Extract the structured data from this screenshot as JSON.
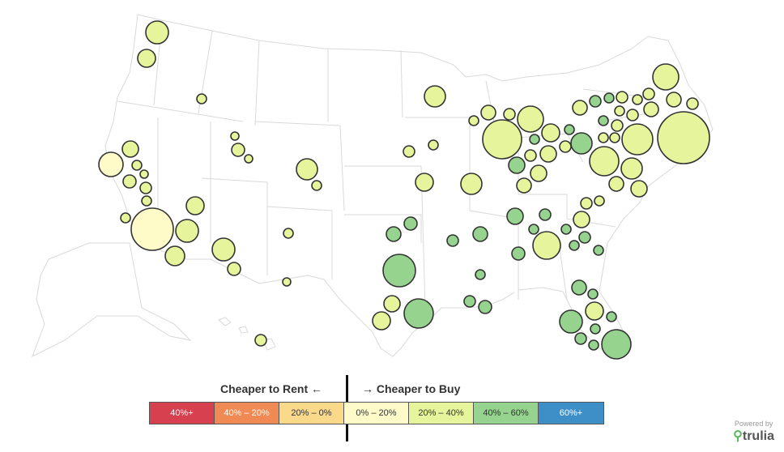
{
  "legend": {
    "rent_title": "Cheaper to Rent",
    "rent_arrow": "←",
    "buy_arrow": "→",
    "buy_title": "Cheaper to Buy",
    "bins": [
      {
        "label": "40%+",
        "color": "#d7404f",
        "text_color": "#ffffff"
      },
      {
        "label": "40% – 20%",
        "color": "#ef8a55",
        "text_color": "#ffffff"
      },
      {
        "label": "20% – 0%",
        "color": "#fbd98a",
        "text_color": "#333333"
      },
      {
        "label": "0% – 20%",
        "color": "#fefbc9",
        "text_color": "#333333"
      },
      {
        "label": "20% – 40%",
        "color": "#e6f59b",
        "text_color": "#333333"
      },
      {
        "label": "40% – 60%",
        "color": "#96d38f",
        "text_color": "#333333"
      },
      {
        "label": "60%+",
        "color": "#3e8fc8",
        "text_color": "#ffffff"
      }
    ]
  },
  "branding": {
    "powered_by": "Powered by",
    "logo": "trulia"
  }
}
